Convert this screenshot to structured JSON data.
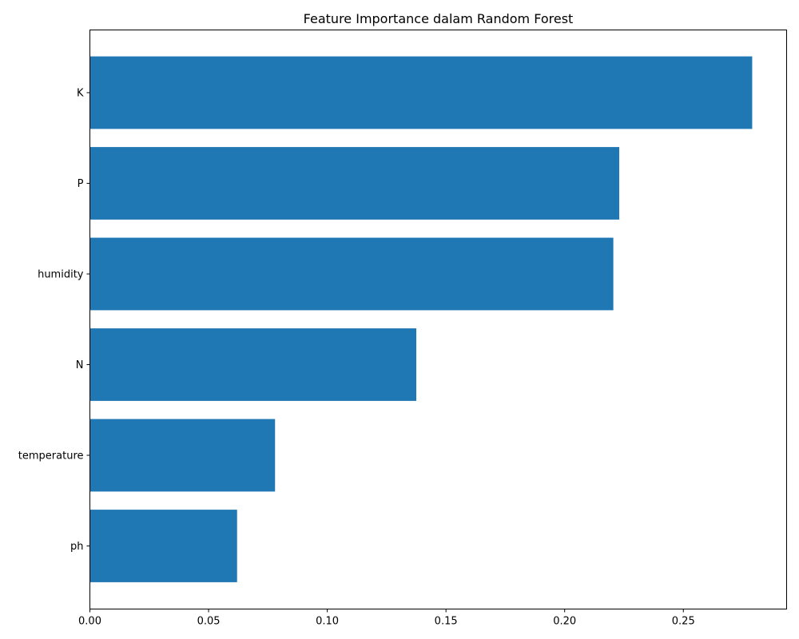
{
  "chart_data": {
    "type": "bar",
    "orientation": "horizontal",
    "title": "Feature Importance dalam Random Forest",
    "xlabel": "",
    "ylabel": "",
    "categories": [
      "K",
      "P",
      "humidity",
      "N",
      "temperature",
      "ph"
    ],
    "values": [
      0.279,
      0.223,
      0.2205,
      0.1375,
      0.078,
      0.062
    ],
    "xlim": [
      0,
      0.2935
    ],
    "xticks": [
      0.0,
      0.05,
      0.1,
      0.15,
      0.2,
      0.25
    ],
    "xtick_labels": [
      "0.00",
      "0.05",
      "0.10",
      "0.15",
      "0.20",
      "0.25"
    ],
    "bar_color": "#1f77b4",
    "grid": false
  }
}
